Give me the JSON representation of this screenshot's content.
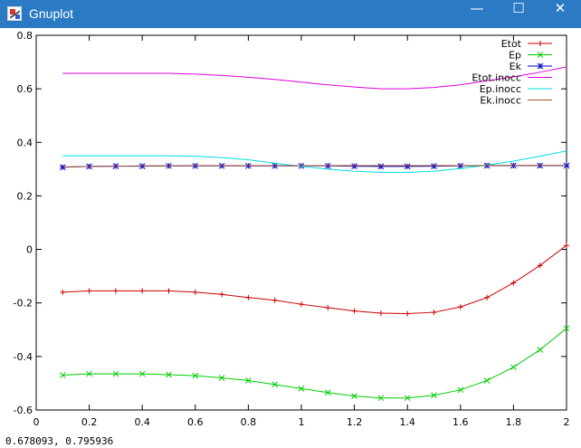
{
  "window": {
    "title": "Gnuplot",
    "minimize_glyph": "—",
    "maximize_glyph": "☐",
    "close_glyph": "✕"
  },
  "status_text": "0.678093,  0.795936",
  "chart_data": {
    "type": "line",
    "title": "",
    "xlabel": "",
    "ylabel": "",
    "xlim": [
      0,
      2
    ],
    "ylim": [
      -0.6,
      0.8
    ],
    "xticks": [
      0,
      0.2,
      0.4,
      0.6,
      0.8,
      1,
      1.2,
      1.4,
      1.6,
      1.8,
      2
    ],
    "xtick_labels": [
      "0",
      "0.2",
      "0.4",
      "0.6",
      "0.8",
      "1",
      "1.2",
      "1.4",
      "1.6",
      "1.8",
      "2"
    ],
    "yticks": [
      -0.6,
      -0.4,
      -0.2,
      0,
      0.2,
      0.4,
      0.6,
      0.8
    ],
    "ytick_labels": [
      "-0.6",
      "-0.4",
      "-0.2",
      "0",
      "0.2",
      "0.4",
      "0.6",
      "0.8"
    ],
    "grid": false,
    "legend_position": "top-right",
    "series": [
      {
        "name": "Etot",
        "color": "#cc0000",
        "marker": "plus",
        "x": [
          0.1,
          0.2,
          0.3,
          0.4,
          0.5,
          0.6,
          0.7,
          0.8,
          0.9,
          1.0,
          1.1,
          1.2,
          1.3,
          1.4,
          1.5,
          1.6,
          1.7,
          1.8,
          1.9,
          2.0
        ],
        "y": [
          -0.16,
          -0.155,
          -0.155,
          -0.155,
          -0.155,
          -0.16,
          -0.168,
          -0.18,
          -0.19,
          -0.205,
          -0.218,
          -0.23,
          -0.238,
          -0.24,
          -0.235,
          -0.215,
          -0.18,
          -0.125,
          -0.06,
          0.015
        ]
      },
      {
        "name": "Ep",
        "color": "#00cc00",
        "marker": "cross",
        "x": [
          0.1,
          0.2,
          0.3,
          0.4,
          0.5,
          0.6,
          0.7,
          0.8,
          0.9,
          1.0,
          1.1,
          1.2,
          1.3,
          1.4,
          1.5,
          1.6,
          1.7,
          1.8,
          1.9,
          2.0
        ],
        "y": [
          -0.47,
          -0.465,
          -0.465,
          -0.465,
          -0.468,
          -0.472,
          -0.48,
          -0.49,
          -0.505,
          -0.52,
          -0.535,
          -0.548,
          -0.555,
          -0.555,
          -0.545,
          -0.525,
          -0.49,
          -0.44,
          -0.375,
          -0.295
        ]
      },
      {
        "name": "Ek",
        "color": "#0000cc",
        "marker": "star",
        "x": [
          0.1,
          0.2,
          0.3,
          0.4,
          0.5,
          0.6,
          0.7,
          0.8,
          0.9,
          1.0,
          1.1,
          1.2,
          1.3,
          1.4,
          1.5,
          1.6,
          1.7,
          1.8,
          1.9,
          2.0
        ],
        "y": [
          0.307,
          0.31,
          0.311,
          0.311,
          0.312,
          0.312,
          0.312,
          0.312,
          0.312,
          0.312,
          0.312,
          0.311,
          0.31,
          0.31,
          0.311,
          0.312,
          0.313,
          0.313,
          0.313,
          0.313
        ]
      },
      {
        "name": "Etot.inocc",
        "color": "#dd00dd",
        "marker": "none",
        "x": [
          0.1,
          0.2,
          0.3,
          0.4,
          0.5,
          0.6,
          0.7,
          0.8,
          0.9,
          1.0,
          1.1,
          1.2,
          1.3,
          1.4,
          1.5,
          1.6,
          1.7,
          1.8,
          1.9,
          2.0
        ],
        "y": [
          0.658,
          0.658,
          0.658,
          0.658,
          0.658,
          0.655,
          0.65,
          0.643,
          0.635,
          0.625,
          0.615,
          0.607,
          0.6,
          0.6,
          0.605,
          0.615,
          0.63,
          0.645,
          0.662,
          0.682
        ]
      },
      {
        "name": "Ep.inocc",
        "color": "#00dddd",
        "marker": "none",
        "x": [
          0.1,
          0.2,
          0.3,
          0.4,
          0.5,
          0.6,
          0.7,
          0.8,
          0.9,
          1.0,
          1.1,
          1.2,
          1.3,
          1.4,
          1.5,
          1.6,
          1.7,
          1.8,
          1.9,
          2.0
        ],
        "y": [
          0.35,
          0.35,
          0.35,
          0.35,
          0.35,
          0.348,
          0.343,
          0.335,
          0.322,
          0.31,
          0.3,
          0.292,
          0.288,
          0.288,
          0.292,
          0.302,
          0.315,
          0.33,
          0.348,
          0.368
        ]
      },
      {
        "name": "Ek.inocc",
        "color": "#a0522d",
        "marker": "none",
        "x": [
          0.1,
          0.2,
          0.3,
          0.4,
          0.5,
          0.6,
          0.7,
          0.8,
          0.9,
          1.0,
          1.1,
          1.2,
          1.3,
          1.4,
          1.5,
          1.6,
          1.7,
          1.8,
          1.9,
          2.0
        ],
        "y": [
          0.308,
          0.31,
          0.311,
          0.312,
          0.312,
          0.313,
          0.313,
          0.313,
          0.313,
          0.313,
          0.313,
          0.313,
          0.313,
          0.313,
          0.313,
          0.313,
          0.314,
          0.314,
          0.314,
          0.314
        ]
      }
    ]
  }
}
